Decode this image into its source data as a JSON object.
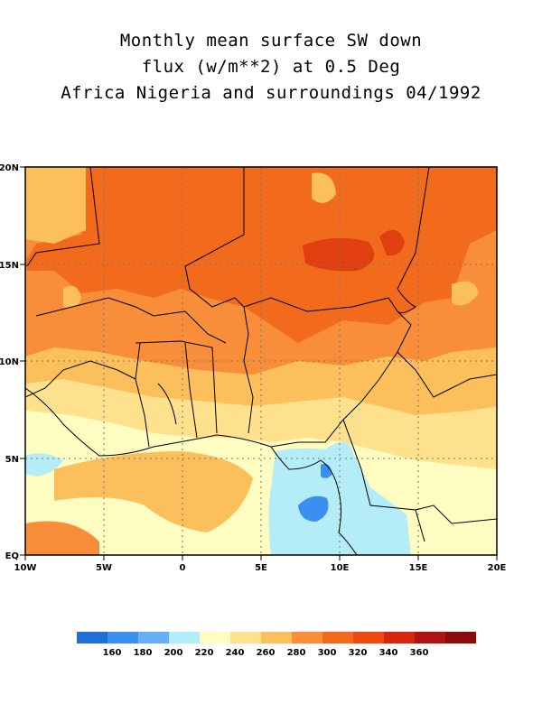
{
  "title_lines": [
    "Monthly mean surface SW down",
    "flux (w/m**2) at 0.5 Deg",
    "Africa Nigeria and surroundings 04/1992"
  ],
  "map": {
    "lon_ticks": [
      "10W",
      "5W",
      "0",
      "5E",
      "10E",
      "15E",
      "20E"
    ],
    "lat_ticks": [
      "EQ",
      "5N",
      "10N",
      "15N",
      "20N"
    ],
    "lon_range": [
      -10,
      20
    ],
    "lat_range": [
      0,
      20
    ],
    "grid": "dotted"
  },
  "legend": {
    "colors": [
      "#1f6fd6",
      "#3a8ff0",
      "#66b0f5",
      "#b4ecf7",
      "#fefcc0",
      "#fde18c",
      "#fbbf5c",
      "#f88e3a",
      "#f26a1c",
      "#ee4a10",
      "#d4260e",
      "#b01412",
      "#8b0a0a"
    ],
    "labels": [
      "160",
      "180",
      "200",
      "220",
      "240",
      "260",
      "280",
      "300",
      "320",
      "340",
      "360"
    ]
  }
}
